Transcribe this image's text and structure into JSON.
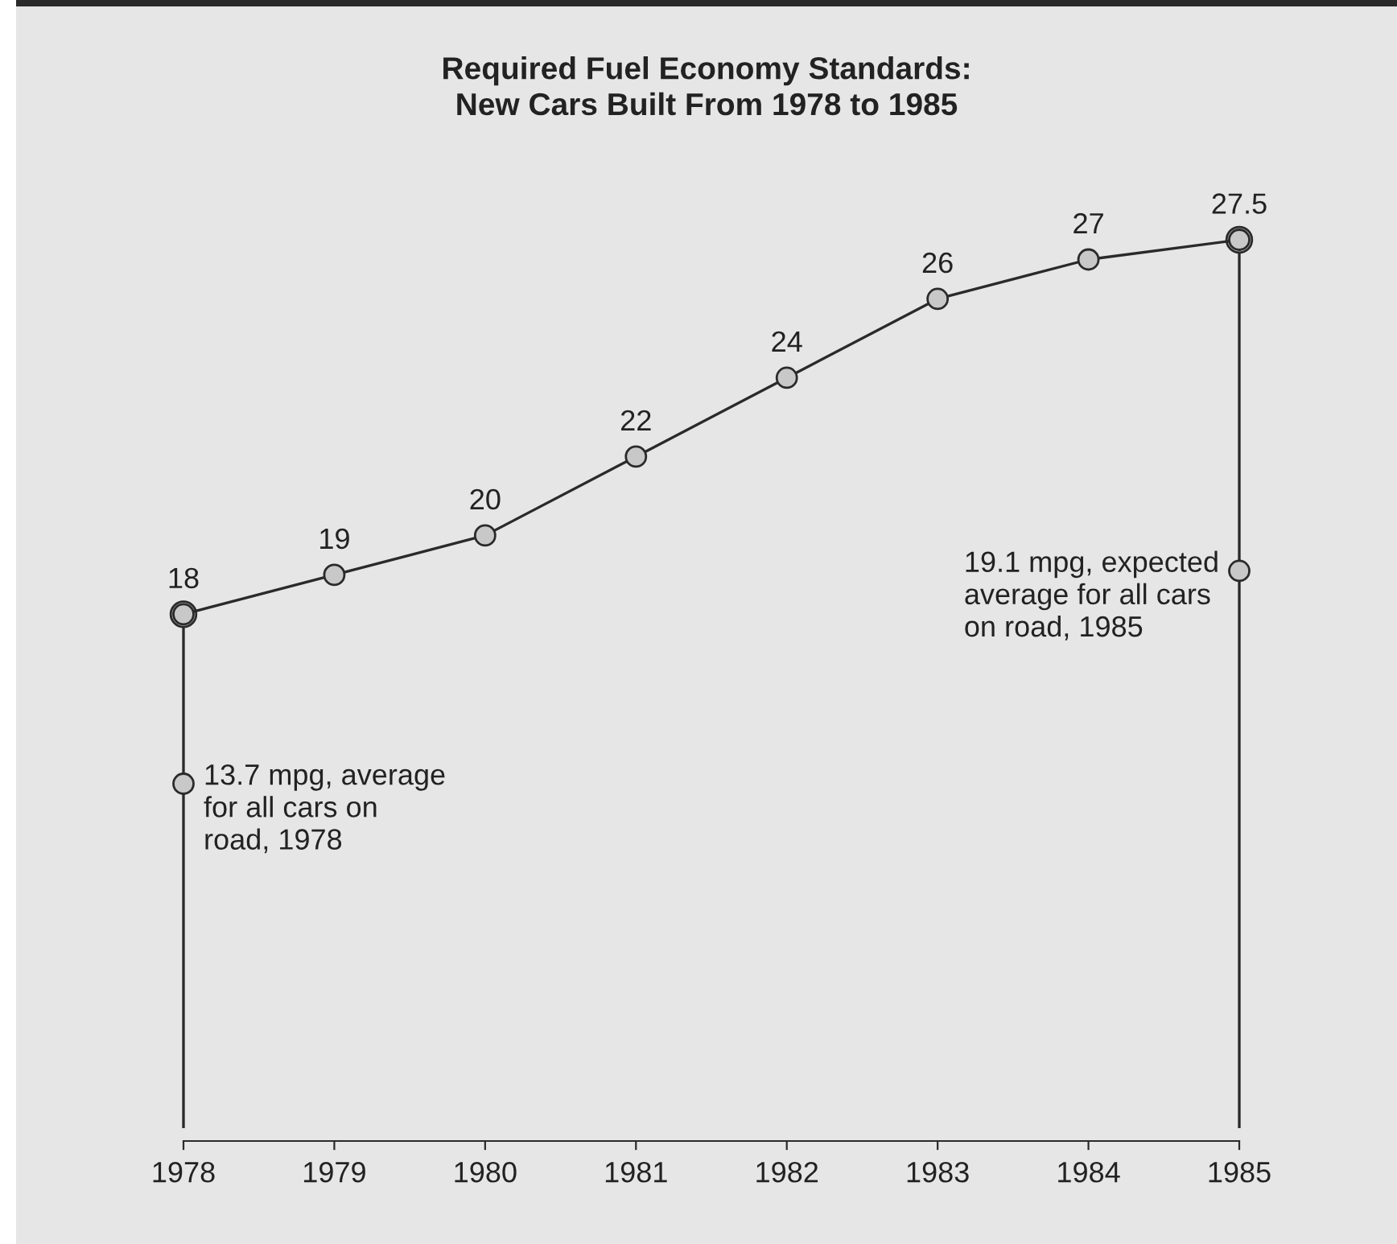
{
  "chart_data": {
    "type": "line",
    "title": "Required Fuel Economy Standards:\nNew Cars Built From 1978 to 1985",
    "x": [
      1978,
      1979,
      1980,
      1981,
      1982,
      1983,
      1984,
      1985
    ],
    "series": [
      {
        "color": "#2a2a2a",
        "marker": "circle",
        "values": [
          18,
          19,
          20,
          22,
          24,
          26,
          27,
          27.5
        ],
        "value_labels": [
          "18",
          "19",
          "20",
          "22",
          "24",
          "26",
          "27",
          "27.5"
        ]
      },
      {
        "type": "lollipop",
        "color": "#2a2a2a",
        "marker": "circle",
        "values": [
          18,
          null,
          null,
          null,
          null,
          null,
          null,
          27.5
        ]
      },
      {
        "type": "scatter",
        "color": "#2a2a2a",
        "marker": "circle",
        "values": [
          13.7,
          null,
          null,
          null,
          null,
          null,
          null,
          19.1
        ]
      }
    ],
    "annotations": [
      {
        "text": "13.7 mpg, average\nfor all cars on\nroad, 1978",
        "x": 1978,
        "y": 13.7
      },
      {
        "text": "19.1 mpg, expected\naverage for all cars\non road, 1985",
        "x": 1985,
        "y": 19.1
      }
    ],
    "xlim": [
      1978,
      1985
    ],
    "xticks": [
      1978,
      1979,
      1980,
      1981,
      1982,
      1983,
      1984,
      1985
    ],
    "tick_labels": "x",
    "legend": false
  }
}
